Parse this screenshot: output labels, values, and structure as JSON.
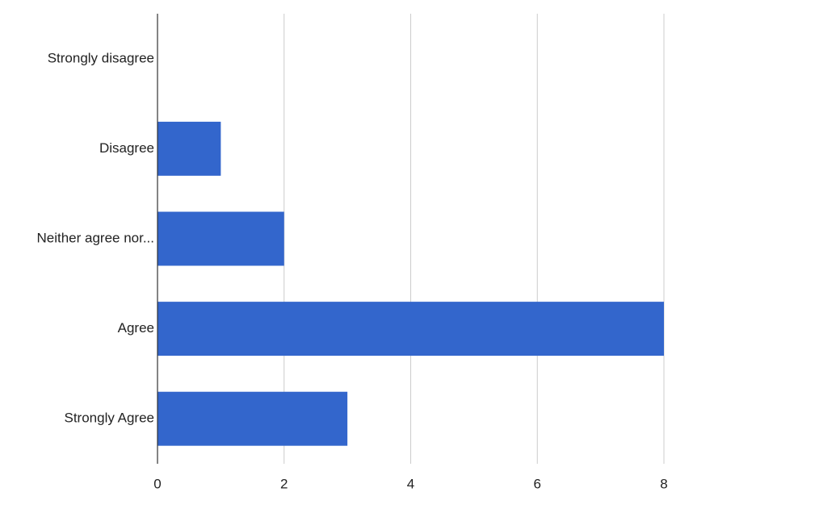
{
  "chart_data": {
    "type": "bar",
    "orientation": "horizontal",
    "categories": [
      "Strongly disagree",
      "Disagree",
      "Neither agree nor...",
      "Agree",
      "Strongly Agree"
    ],
    "values": [
      0,
      1,
      2,
      8,
      3
    ],
    "color": "#3366cc",
    "xlim": [
      0,
      8
    ],
    "xticks": [
      0,
      2,
      4,
      6,
      8
    ],
    "grid": true
  }
}
